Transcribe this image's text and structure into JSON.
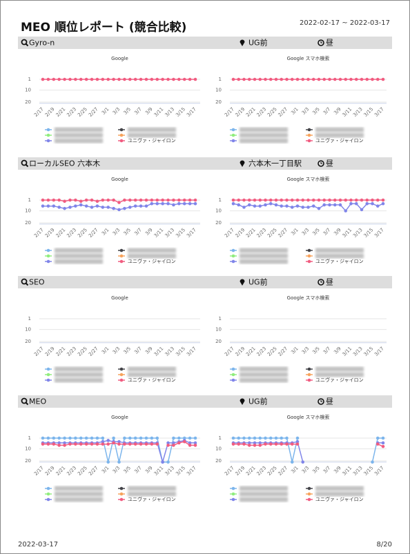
{
  "title": "MEO 順位レポート (競合比較)",
  "date_range": "2022-02-17 ~ 2022-03-17",
  "categories": [
    "2/17",
    null,
    "2/19",
    null,
    "2/21",
    null,
    "2/23",
    null,
    "2/25",
    null,
    "2/27",
    null,
    "3/1",
    null,
    "3/3",
    null,
    "3/5",
    null,
    "3/7",
    null,
    "3/9",
    null,
    "3/11",
    null,
    "3/13",
    null,
    "3/15",
    null,
    "3/17"
  ],
  "ylim": [
    21,
    -1
  ],
  "yticks": [
    1,
    10,
    20
  ],
  "legend": [
    {
      "color": "#7cb5ec"
    },
    {
      "color": "#90ed7d"
    },
    {
      "color": "#8085e9"
    },
    {
      "color": "#434348"
    },
    {
      "color": "#f7a35c"
    },
    {
      "name": "ユニヴァ・ジャイロン",
      "color": "#f15c80"
    }
  ],
  "sections": [
    {
      "keyword": "Gyro-n",
      "location": "UG前",
      "time": "昼",
      "charts": [
        {
          "type": "line",
          "title": "Google",
          "series": [
            {
              "name": "ユニヴァ・ジャイロン",
              "color": "#f15c80",
              "values": [
                1,
                1,
                1,
                1,
                1,
                1,
                1,
                1,
                1,
                1,
                1,
                1,
                1,
                1,
                1,
                1,
                1,
                1,
                1,
                1,
                1,
                1,
                1,
                1,
                1,
                1,
                1,
                1,
                1
              ]
            }
          ]
        },
        {
          "type": "line",
          "title": "Google スマホ検索",
          "series": [
            {
              "name": "ユニヴァ・ジャイロン",
              "color": "#f15c80",
              "values": [
                1,
                1,
                1,
                1,
                1,
                1,
                1,
                1,
                1,
                1,
                1,
                1,
                1,
                1,
                1,
                1,
                1,
                1,
                1,
                1,
                1,
                1,
                1,
                1,
                1,
                1,
                1,
                1,
                1
              ]
            }
          ]
        }
      ]
    },
    {
      "keyword": "ローカルSEO 六本木",
      "location": "六本木一丁目駅",
      "time": "昼",
      "charts": [
        {
          "type": "line",
          "title": "Google",
          "series": [
            {
              "color": "#8085e9",
              "values": [
                6,
                6,
                6,
                7,
                8,
                7,
                6,
                5,
                6,
                7,
                6,
                7,
                7,
                8,
                9,
                8,
                7,
                6,
                6,
                6,
                4,
                4,
                4,
                4,
                5,
                4,
                4,
                4,
                4
              ]
            },
            {
              "name": "ユニヴァ・ジャイロン",
              "color": "#f15c80",
              "values": [
                1,
                1,
                1,
                1,
                2,
                1,
                1,
                2,
                1,
                1,
                2,
                1,
                1,
                1,
                3,
                1,
                1,
                1,
                1,
                1,
                1,
                1,
                1,
                1,
                1,
                1,
                1,
                1,
                1
              ]
            }
          ]
        },
        {
          "type": "line",
          "title": "Google スマホ検索",
          "series": [
            {
              "color": "#8085e9",
              "values": [
                4,
                5,
                7,
                5,
                6,
                6,
                5,
                4,
                5,
                6,
                6,
                7,
                6,
                7,
                7,
                6,
                8,
                5,
                5,
                5,
                5,
                10,
                4,
                4,
                9,
                4,
                4,
                6,
                4
              ]
            },
            {
              "name": "ユニヴァ・ジャイロン",
              "color": "#f15c80",
              "values": [
                1,
                1,
                1,
                1,
                1,
                1,
                1,
                1,
                1,
                1,
                1,
                1,
                1,
                1,
                1,
                1,
                1,
                1,
                1,
                1,
                1,
                1,
                1,
                1,
                1,
                1,
                1,
                1,
                1
              ]
            }
          ]
        }
      ]
    },
    {
      "keyword": "SEO",
      "location": "UG前",
      "time": "昼",
      "charts": [
        {
          "type": "line",
          "title": "Google",
          "series": []
        },
        {
          "type": "line",
          "title": "Google スマホ検索",
          "series": []
        }
      ]
    },
    {
      "keyword": "MEO",
      "location": "UG前",
      "time": "昼",
      "charts": [
        {
          "type": "line",
          "title": "Google",
          "series": [
            {
              "color": "#7cb5ec",
              "values": [
                1,
                1,
                1,
                1,
                1,
                1,
                1,
                1,
                1,
                1,
                1,
                1,
                21,
                1,
                21,
                1,
                1,
                1,
                1,
                1,
                1,
                1,
                21,
                21,
                1,
                1,
                1,
                1,
                1
              ]
            },
            {
              "color": "#8085e9",
              "values": [
                5,
                5,
                5,
                5,
                5,
                5,
                5,
                5,
                5,
                5,
                5,
                4,
                3,
                4,
                4,
                5,
                5,
                5,
                5,
                5,
                5,
                5,
                21,
                5,
                5,
                4,
                3,
                5,
                5
              ]
            },
            {
              "name": "ユニヴァ・ジャイロン",
              "color": "#f15c80",
              "values": [
                6,
                6,
                6,
                7,
                7,
                6,
                6,
                6,
                6,
                6,
                6,
                6,
                6,
                5,
                6,
                6,
                6,
                6,
                6,
                6,
                6,
                6,
                null,
                7,
                7,
                5,
                4,
                7,
                7
              ]
            }
          ]
        },
        {
          "type": "line",
          "title": "Google スマホ検索",
          "series": [
            {
              "color": "#7cb5ec",
              "values": [
                1,
                1,
                1,
                1,
                1,
                1,
                1,
                1,
                1,
                1,
                1,
                21,
                1,
                null,
                null,
                null,
                null,
                null,
                null,
                null,
                null,
                null,
                null,
                null,
                null,
                null,
                21,
                1,
                1
              ]
            },
            {
              "color": "#8085e9",
              "values": [
                5,
                5,
                5,
                5,
                5,
                5,
                5,
                5,
                5,
                5,
                5,
                5,
                4,
                21,
                null,
                null,
                null,
                null,
                null,
                null,
                null,
                null,
                null,
                null,
                null,
                null,
                null,
                5,
                5
              ]
            },
            {
              "name": "ユニヴァ・ジャイロン",
              "color": "#f15c80",
              "values": [
                6,
                6,
                6,
                7,
                7,
                7,
                6,
                6,
                6,
                6,
                6,
                6,
                6,
                null,
                null,
                null,
                null,
                null,
                null,
                null,
                null,
                null,
                null,
                null,
                null,
                null,
                null,
                6,
                8
              ]
            }
          ]
        }
      ]
    }
  ],
  "footer": {
    "date": "2022-03-17",
    "page": "8/20"
  }
}
